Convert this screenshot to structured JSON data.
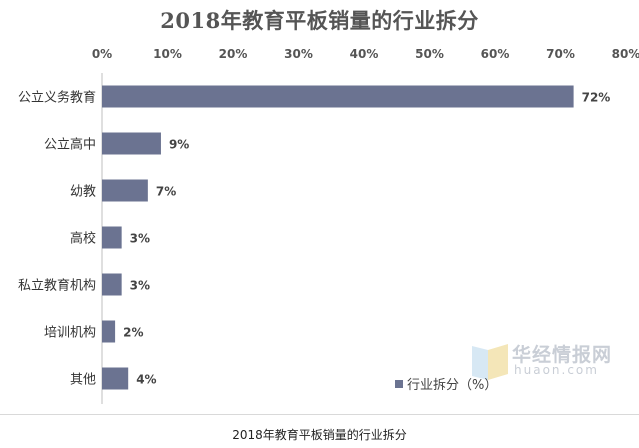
{
  "chart_data": {
    "type": "bar",
    "orientation": "horizontal",
    "title": "2018年教育平板销量的行业拆分",
    "categories": [
      "公立义务教育",
      "公立高中",
      "幼教",
      "高校",
      "私立教育机构",
      "培训机构",
      "其他"
    ],
    "series": [
      {
        "name": "行业拆分（%）",
        "values": [
          72,
          9,
          7,
          3,
          3,
          2,
          4
        ]
      }
    ],
    "value_labels": [
      "72%",
      "9%",
      "7%",
      "3%",
      "3%",
      "2%",
      "4%"
    ],
    "xlim": [
      0,
      80
    ],
    "x_ticks": [
      0,
      10,
      20,
      30,
      40,
      50,
      60,
      70,
      80
    ],
    "x_tick_labels": [
      "0%",
      "10%",
      "20%",
      "30%",
      "40%",
      "50%",
      "60%",
      "70%",
      "80%"
    ],
    "xaxis_position": "top",
    "grid": false,
    "legend": "bottom-right",
    "bar_color": "#6b7391"
  },
  "watermark": {
    "text_cn": "华经情报网",
    "text_en": "huaon.com"
  },
  "caption": "2018年教育平板销量的行业拆分"
}
